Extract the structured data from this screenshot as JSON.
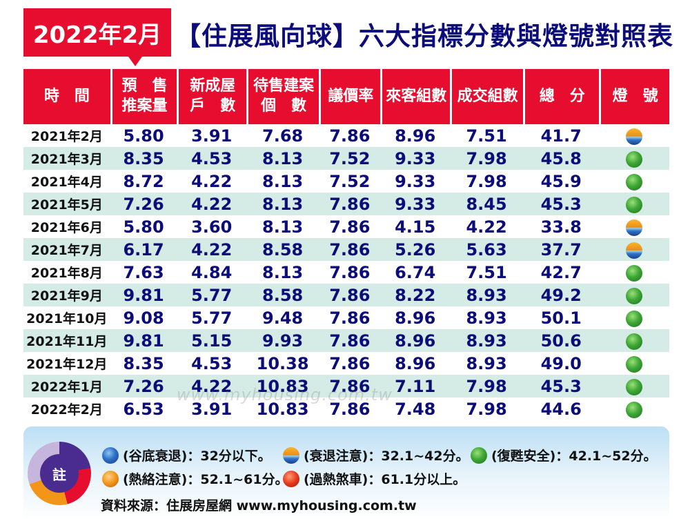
{
  "badge": "2022年2月",
  "title": "【住展風向球】六大指標分數與燈號對照表",
  "headers": [
    [
      "時　間"
    ],
    [
      "預　售",
      "推案量"
    ],
    [
      "新成屋",
      "戶　數"
    ],
    [
      "待售建案",
      "個　數"
    ],
    [
      "議價率"
    ],
    [
      "來客組數"
    ],
    [
      "成交組數"
    ],
    [
      "總　分"
    ],
    [
      "燈　號"
    ]
  ],
  "rows": [
    {
      "date": "2021年2月",
      "v": [
        "5.80",
        "3.91",
        "7.68",
        "7.86",
        "8.96",
        "7.51",
        "41.7"
      ],
      "light": "split",
      "light_name": "衰退注意"
    },
    {
      "date": "2021年3月",
      "v": [
        "8.35",
        "4.53",
        "8.13",
        "7.52",
        "9.33",
        "7.98",
        "45.8"
      ],
      "light": "green",
      "light_name": "復甦安全"
    },
    {
      "date": "2021年4月",
      "v": [
        "8.72",
        "4.22",
        "8.13",
        "7.52",
        "9.33",
        "7.98",
        "45.9"
      ],
      "light": "green",
      "light_name": "復甦安全"
    },
    {
      "date": "2021年5月",
      "v": [
        "7.26",
        "4.22",
        "8.13",
        "7.86",
        "9.33",
        "8.45",
        "45.3"
      ],
      "light": "green",
      "light_name": "復甦安全"
    },
    {
      "date": "2021年6月",
      "v": [
        "5.80",
        "3.60",
        "8.13",
        "7.86",
        "4.15",
        "4.22",
        "33.8"
      ],
      "light": "split",
      "light_name": "衰退注意"
    },
    {
      "date": "2021年7月",
      "v": [
        "6.17",
        "4.22",
        "8.58",
        "7.86",
        "5.26",
        "5.63",
        "37.7"
      ],
      "light": "split",
      "light_name": "衰退注意"
    },
    {
      "date": "2021年8月",
      "v": [
        "7.63",
        "4.84",
        "8.13",
        "7.86",
        "6.74",
        "7.51",
        "42.7"
      ],
      "light": "green",
      "light_name": "復甦安全"
    },
    {
      "date": "2021年9月",
      "v": [
        "9.81",
        "5.77",
        "8.58",
        "7.86",
        "8.22",
        "8.93",
        "49.2"
      ],
      "light": "green",
      "light_name": "復甦安全"
    },
    {
      "date": "2021年10月",
      "v": [
        "9.08",
        "5.77",
        "9.48",
        "7.86",
        "8.96",
        "8.93",
        "50.1"
      ],
      "light": "green",
      "light_name": "復甦安全"
    },
    {
      "date": "2021年11月",
      "v": [
        "9.81",
        "5.15",
        "9.93",
        "7.86",
        "8.96",
        "8.93",
        "50.6"
      ],
      "light": "green",
      "light_name": "復甦安全"
    },
    {
      "date": "2021年12月",
      "v": [
        "8.35",
        "4.53",
        "10.38",
        "7.86",
        "8.96",
        "8.93",
        "49.0"
      ],
      "light": "green",
      "light_name": "復甦安全"
    },
    {
      "date": "2022年1月",
      "v": [
        "7.26",
        "4.22",
        "10.83",
        "7.86",
        "7.11",
        "7.98",
        "45.3"
      ],
      "light": "green",
      "light_name": "復甦安全"
    },
    {
      "date": "2022年2月",
      "v": [
        "6.53",
        "3.91",
        "10.83",
        "7.86",
        "7.48",
        "7.98",
        "44.6"
      ],
      "light": "green",
      "light_name": "復甦安全"
    }
  ],
  "watermark": "www.myhousing.com.tw",
  "note": {
    "label": "註",
    "legend": [
      {
        "light": "blue",
        "text": "(谷底衰退)：32分以下。"
      },
      {
        "light": "split",
        "text": "(衰退注意)：32.1~42分。"
      },
      {
        "light": "green",
        "text": "(復甦安全)：42.1~52分。"
      },
      {
        "light": "orange",
        "text": "(熱絡注意)：52.1~61分。"
      },
      {
        "light": "red",
        "text": "(過熱煞車)：61.1分以上。"
      }
    ],
    "source": "資料來源：住展房屋網 www.myhousing.com.tw"
  },
  "colors": {
    "header_red": "#e60d2e",
    "title_navy": "#0d0d7a",
    "alt_row": "#d5ece6"
  }
}
